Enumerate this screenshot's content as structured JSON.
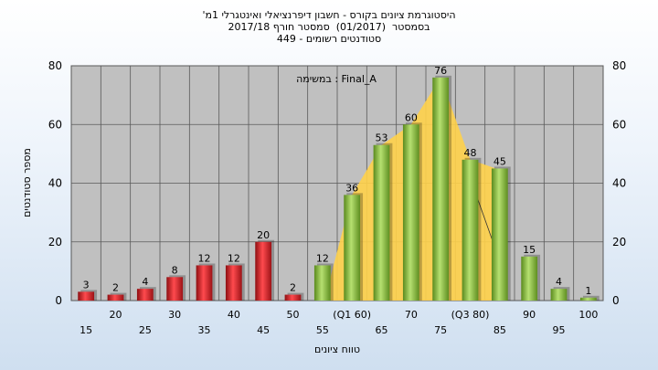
{
  "title_lines": [
    "'היסטוגרמת ציונים בקורס - חשבון דיפרנציאלי ואינטגרלי 1מ",
    "בסמסטר  (01/2017)  סמסטר חורף 2017/18",
    "סטודנטים רשומים - 449"
  ],
  "chart_data": {
    "type": "bar",
    "title": "'היסטוגרמת ציונים בקורס - חשבון דיפרנציאלי ואינטגרלי 1מ",
    "subtitle": "בסמסטר  (01/2017)  סמסטר חורף 2017/18 / סטודנטים רשומים - 449",
    "xlabel": "טווח ציונים",
    "ylabel": "מספר סטודנטים",
    "ylim": [
      0,
      80
    ],
    "yticks": [
      0,
      20,
      40,
      60,
      80
    ],
    "grid": true,
    "right_axis": true,
    "categories": [
      "15",
      "20",
      "25",
      "30",
      "35",
      "40",
      "45",
      "50",
      "55",
      "(Q1 60)",
      "65",
      "70",
      "75",
      "(Q3 80)",
      "85",
      "90",
      "95",
      "100"
    ],
    "values": [
      3,
      2,
      4,
      8,
      12,
      12,
      20,
      2,
      12,
      36,
      53,
      60,
      76,
      48,
      45,
      15,
      4,
      1
    ],
    "bar_colors": [
      "red",
      "red",
      "red",
      "red",
      "red",
      "red",
      "red",
      "red",
      "green",
      "green",
      "green",
      "green",
      "green",
      "green",
      "green",
      "green",
      "green",
      "green"
    ],
    "annotation": "במשימה : Final_A",
    "iqr_band": {
      "from": "(Q1 60)",
      "to": "(Q3 80)",
      "color": "#ffd24a"
    },
    "colors": {
      "red": "#e0282c",
      "green": "#8cc63f",
      "plot_bg": "#c0c0c0",
      "band": "#ffd24a"
    }
  }
}
